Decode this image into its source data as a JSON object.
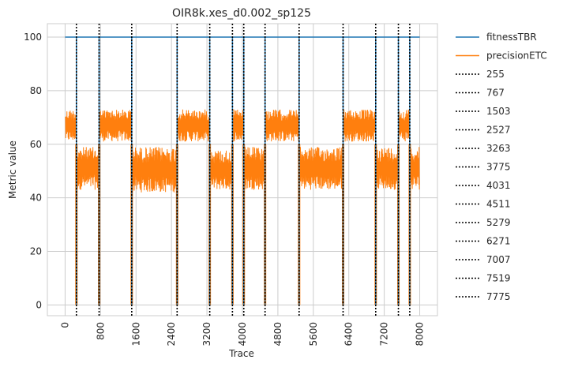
{
  "chart_data": {
    "type": "line",
    "title": "OIR8k.xes_d0.002_sp125",
    "xlabel": "Trace",
    "ylabel": "Metric value",
    "xlim": [
      -400,
      8400
    ],
    "ylim": [
      -4,
      105
    ],
    "xticks": [
      0,
      800,
      1600,
      2400,
      3200,
      4000,
      4800,
      5600,
      6400,
      7200,
      8000
    ],
    "yticks": [
      0,
      20,
      40,
      60,
      80,
      100
    ],
    "grid": true,
    "legend_placement": "outside-right",
    "series": [
      {
        "name": "fitnessTBR",
        "color": "#1f77b4",
        "values": [
          [
            0,
            100
          ],
          [
            8000,
            100
          ]
        ]
      },
      {
        "name": "precisionETC",
        "color": "#ff7f0e",
        "segments": [
          {
            "x_start": 0,
            "x_end": 255,
            "low": 61,
            "high": 73
          },
          {
            "x_start": 255,
            "x_end": 767,
            "low": 43,
            "high": 59
          },
          {
            "x_start": 767,
            "x_end": 1503,
            "low": 61,
            "high": 73
          },
          {
            "x_start": 1503,
            "x_end": 2527,
            "low": 42,
            "high": 59
          },
          {
            "x_start": 2527,
            "x_end": 3263,
            "low": 61,
            "high": 73
          },
          {
            "x_start": 3263,
            "x_end": 3775,
            "low": 43,
            "high": 58
          },
          {
            "x_start": 3775,
            "x_end": 4031,
            "low": 61,
            "high": 73
          },
          {
            "x_start": 4031,
            "x_end": 4511,
            "low": 43,
            "high": 59
          },
          {
            "x_start": 4511,
            "x_end": 5279,
            "low": 61,
            "high": 73
          },
          {
            "x_start": 5279,
            "x_end": 6271,
            "low": 43,
            "high": 59
          },
          {
            "x_start": 6271,
            "x_end": 7007,
            "low": 61,
            "high": 73
          },
          {
            "x_start": 7007,
            "x_end": 7519,
            "low": 43,
            "high": 59
          },
          {
            "x_start": 7519,
            "x_end": 7775,
            "low": 61,
            "high": 73
          },
          {
            "x_start": 7775,
            "x_end": 8000,
            "low": 43,
            "high": 59
          }
        ],
        "dips_to": 0
      }
    ],
    "vlines": {
      "color": "#000000",
      "style": "dotted",
      "values": [
        255,
        767,
        1503,
        2527,
        3263,
        3775,
        4031,
        4511,
        5279,
        6271,
        7007,
        7519,
        7775
      ],
      "labels": [
        "255",
        "767",
        "1503",
        "2527",
        "3263",
        "3775",
        "4031",
        "4511",
        "5279",
        "6271",
        "7007",
        "7519",
        "7775"
      ]
    }
  }
}
